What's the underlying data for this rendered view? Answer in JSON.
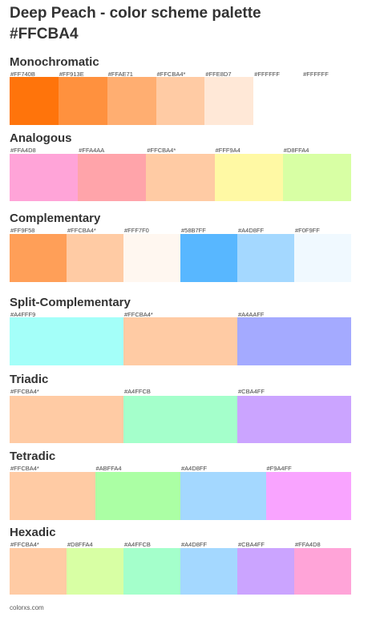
{
  "title_line1": "Deep Peach - color scheme palette",
  "title_line2": "#FFCBA4",
  "sections": [
    {
      "name": "Monochromatic",
      "labels": [
        "#FF740B",
        "#FF913E",
        "#FFAE71",
        "#FFCBA4*",
        "#FFE8D7",
        "#FFFFFF",
        "#FFFFFF"
      ],
      "colors": [
        "#FF740B",
        "#FF913E",
        "#FFAE71",
        "#FFCBA4",
        "#FFE8D7",
        "#FFFFFF",
        "#FFFFFF"
      ]
    },
    {
      "name": "Analogous",
      "labels": [
        "#FFA4D8",
        "#FFA4AA",
        "#FFCBA4*",
        "#FFF9A4",
        "#D8FFA4"
      ],
      "colors": [
        "#FFA4D8",
        "#FFA4AA",
        "#FFCBA4",
        "#FFF9A4",
        "#D8FFA4"
      ]
    },
    {
      "name": "Complementary",
      "labels": [
        "#FF9F58",
        "#FFCBA4*",
        "#FFF7F0",
        "#58B7FF",
        "#A4D8FF",
        "#F0F9FF"
      ],
      "colors": [
        "#FF9F58",
        "#FFCBA4",
        "#FFF7F0",
        "#58B7FF",
        "#A4D8FF",
        "#F0F9FF"
      ]
    },
    {
      "name": "Split-Complementary",
      "labels": [
        "#A4FFF9",
        "#FFCBA4*",
        "#A4AAFF"
      ],
      "colors": [
        "#A4FFF9",
        "#FFCBA4",
        "#A4AAFF"
      ]
    },
    {
      "name": "Triadic",
      "labels": [
        "#FFCBA4*",
        "#A4FFCB",
        "#CBA4FF"
      ],
      "colors": [
        "#FFCBA4",
        "#A4FFCB",
        "#CBA4FF"
      ]
    },
    {
      "name": "Tetradic",
      "labels": [
        "#FFCBA4*",
        "#ABFFA4",
        "#A4D8FF",
        "#F9A4FF"
      ],
      "colors": [
        "#FFCBA4",
        "#ABFFA4",
        "#A4D8FF",
        "#F9A4FF"
      ]
    },
    {
      "name": "Hexadic",
      "labels": [
        "#FFCBA4*",
        "#D8FFA4",
        "#A4FFCB",
        "#A4D8FF",
        "#CBA4FF",
        "#FFA4D8"
      ],
      "colors": [
        "#FFCBA4",
        "#D8FFA4",
        "#A4FFCB",
        "#A4D8FF",
        "#CBA4FF",
        "#FFA4D8"
      ]
    }
  ],
  "footer": "colorxs.com"
}
